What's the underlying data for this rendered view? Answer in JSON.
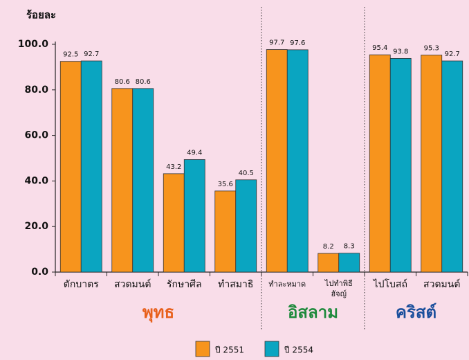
{
  "chart_data": {
    "type": "bar",
    "y_label": "ร้อยละ",
    "categories": [
      "ตักบาตร",
      "สวดมนต์",
      "รักษาศีล",
      "ทำสมาธิ",
      "ทำละหมาด",
      [
        "ไปทำพิธี",
        "ฮัจญ์"
      ],
      "ไปโบสถ์",
      "สวดมนต์"
    ],
    "series": [
      {
        "name": "ปี 2551",
        "color": "#f7941d",
        "values": [
          92.5,
          80.6,
          43.2,
          35.6,
          97.7,
          8.2,
          95.4,
          95.3
        ]
      },
      {
        "name": "ปี 2554",
        "color": "#0aa5c1",
        "values": [
          92.7,
          80.6,
          49.4,
          40.5,
          97.6,
          8.3,
          93.8,
          92.7
        ]
      }
    ],
    "groups": [
      {
        "label": "พุทธ",
        "color": "#e8601c",
        "span": 4
      },
      {
        "label": "อิสลาม",
        "color": "#1e8a3c",
        "span": 2
      },
      {
        "label": "คริสต์",
        "color": "#1b4f9c",
        "span": 2
      }
    ],
    "ylim": [
      0,
      100
    ],
    "yticks": [
      {
        "value": 0,
        "label": "0.0"
      },
      {
        "value": 20,
        "label": "20.0"
      },
      {
        "value": 40,
        "label": "40.0"
      },
      {
        "value": 60,
        "label": "60.0"
      },
      {
        "value": 80,
        "label": "80.0"
      },
      {
        "value": 100,
        "label": "100.0"
      }
    ],
    "legend": "bottom"
  }
}
